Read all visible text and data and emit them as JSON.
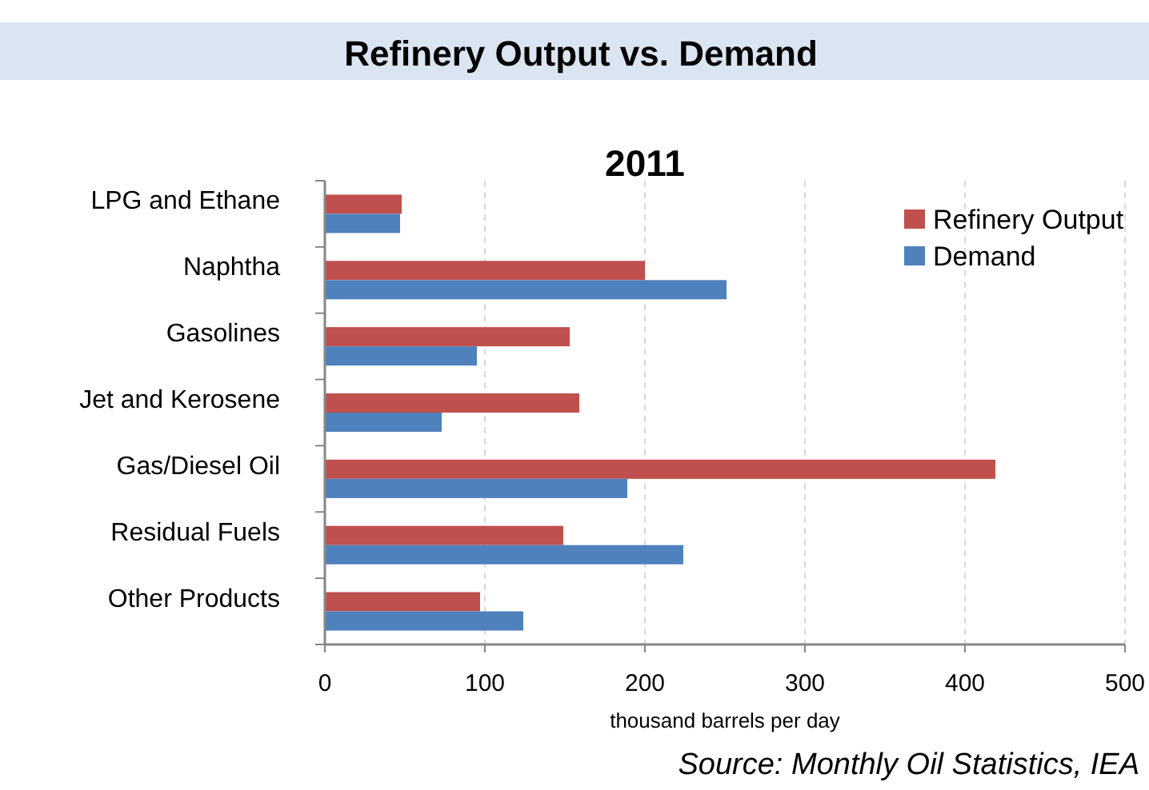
{
  "chart_data": {
    "type": "bar",
    "orientation": "horizontal",
    "title": "Refinery Output vs. Demand",
    "subtitle": "2011",
    "xlabel": "thousand barrels per day",
    "categories": [
      "LPG and Ethane",
      "Naphtha",
      "Gasolines",
      "Jet and Kerosene",
      "Gas/Diesel Oil",
      "Residual Fuels",
      "Other Products"
    ],
    "series": [
      {
        "name": "Refinery Output",
        "color": "#c0504d",
        "values": [
          48,
          200,
          153,
          159,
          419,
          149,
          97
        ]
      },
      {
        "name": "Demand",
        "color": "#4f81bd",
        "values": [
          47,
          251,
          95,
          73,
          189,
          224,
          124
        ]
      }
    ],
    "xlim": [
      0,
      500
    ],
    "xticks": [
      0,
      100,
      200,
      300,
      400,
      500
    ],
    "grid": "x",
    "legend": "top right",
    "annotations": [
      "Source: Monthly Oil Statistics, IEA"
    ]
  }
}
